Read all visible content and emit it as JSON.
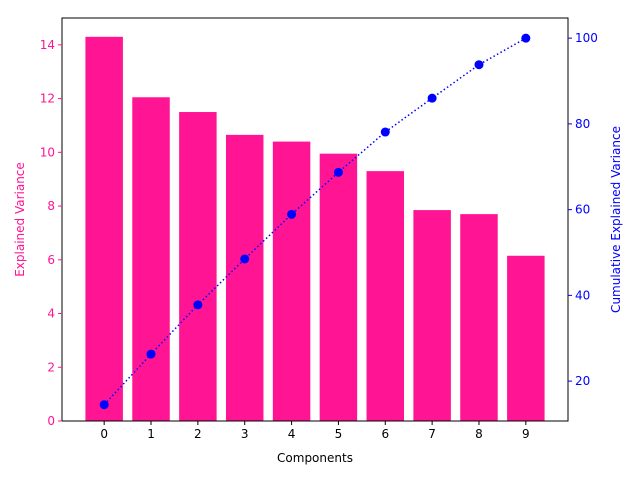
{
  "chart_data": {
    "type": "bar",
    "title": "",
    "xlabel": "Components",
    "categories": [
      "0",
      "1",
      "2",
      "3",
      "4",
      "5",
      "6",
      "7",
      "8",
      "9"
    ],
    "x": [
      0,
      1,
      2,
      3,
      4,
      5,
      6,
      7,
      8,
      9
    ],
    "xticks": [
      "0",
      "1",
      "2",
      "3",
      "4",
      "5",
      "6",
      "7",
      "8",
      "9"
    ],
    "left_axis": {
      "label": "Explained Variance",
      "color": "#ff1493",
      "ylim": [
        0,
        15.0
      ],
      "ticks": [
        "0",
        "2",
        "4",
        "6",
        "8",
        "10",
        "12",
        "14"
      ]
    },
    "right_axis": {
      "label": "Cumulative Explained Variance",
      "color": "#0000ff",
      "ylim": [
        10.7,
        104.7
      ],
      "ticks": [
        "20",
        "40",
        "60",
        "80",
        "100"
      ]
    },
    "series": [
      {
        "type": "bar",
        "axis": "left",
        "color": "#ff1493",
        "values": [
          14.3,
          12.05,
          11.5,
          10.65,
          10.4,
          9.95,
          9.3,
          7.85,
          7.7,
          6.15
        ]
      },
      {
        "type": "line",
        "axis": "right",
        "color": "#0000ff",
        "line_style": "dotted",
        "marker": "circle",
        "values": [
          14.5,
          26.3,
          37.8,
          48.5,
          58.9,
          68.7,
          78.1,
          86.0,
          93.8,
          100.0
        ]
      }
    ],
    "grid": false,
    "legend": "none"
  }
}
